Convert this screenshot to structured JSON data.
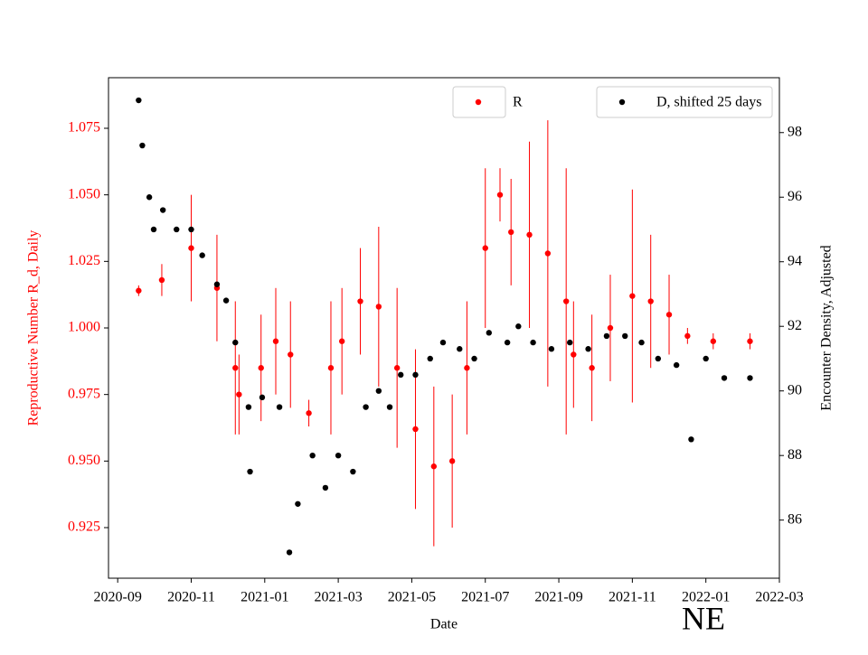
{
  "chart_data": {
    "type": "scatter",
    "xlabel": "Date",
    "ylabel": "Reproductive Number R_d, Daily",
    "y2label": "Encounter Density, Adjusted",
    "annotation": "NE",
    "xlim": [
      -0.25,
      18
    ],
    "xticks": [
      {
        "value": 0,
        "label": "2020-09"
      },
      {
        "value": 2,
        "label": "2020-11"
      },
      {
        "value": 4,
        "label": "2021-01"
      },
      {
        "value": 6,
        "label": "2021-03"
      },
      {
        "value": 8,
        "label": "2021-05"
      },
      {
        "value": 10,
        "label": "2021-07"
      },
      {
        "value": 12,
        "label": "2021-09"
      },
      {
        "value": 14,
        "label": "2021-11"
      },
      {
        "value": 16,
        "label": "2022-01"
      },
      {
        "value": 18,
        "label": "2022-03"
      }
    ],
    "ylim": [
      0.906,
      1.094
    ],
    "yticks": [
      0.925,
      {
        "value": 0.95,
        "label": "0.950"
      },
      0.975,
      {
        "value": 1,
        "label": "1.000"
      },
      1.025,
      {
        "value": 1.05,
        "label": "1.050"
      },
      1.075
    ],
    "y2lim": [
      84.2,
      99.7
    ],
    "y2ticks": [
      86,
      88,
      90,
      92,
      94,
      96,
      98
    ],
    "ycolor": "#ff0000",
    "series": [
      {
        "name": "R",
        "color": "#ff0000",
        "axis": "y",
        "legend": "upper center",
        "x": [
          0.57,
          1.2,
          2.0,
          2.7,
          3.2,
          3.3,
          3.9,
          4.3,
          4.7,
          5.2,
          5.8,
          6.1,
          6.6,
          7.1,
          7.6,
          8.1,
          8.6,
          9.1,
          9.5,
          10.0,
          10.4,
          10.7,
          11.2,
          11.7,
          12.2,
          12.4,
          12.9,
          13.4,
          14.0,
          14.5,
          15.0,
          15.5,
          16.2,
          17.2
        ],
        "values": [
          1.014,
          1.018,
          1.03,
          1.015,
          0.985,
          0.975,
          0.985,
          0.995,
          0.99,
          0.968,
          0.985,
          0.995,
          1.01,
          1.008,
          0.985,
          0.962,
          0.948,
          0.95,
          0.985,
          1.03,
          1.05,
          1.036,
          1.035,
          1.028,
          1.01,
          0.99,
          0.985,
          1.0,
          1.012,
          1.01,
          1.005,
          0.997,
          0.995,
          0.995
        ],
        "errors": [
          0.002,
          0.006,
          0.02,
          0.02,
          0.025,
          0.015,
          0.02,
          0.02,
          0.02,
          0.005,
          0.025,
          0.02,
          0.02,
          0.03,
          0.03,
          0.03,
          0.03,
          0.025,
          0.025,
          0.03,
          0.01,
          0.02,
          0.035,
          0.05,
          0.05,
          0.02,
          0.02,
          0.02,
          0.04,
          0.025,
          0.015,
          0.003,
          0.003,
          0.003
        ]
      },
      {
        "name": "D, shifted 25 days",
        "color": "#000000",
        "axis": "y2",
        "legend": "upper right",
        "x": [
          0.57,
          0.67,
          0.86,
          0.98,
          1.23,
          1.6,
          2.0,
          2.3,
          2.7,
          2.95,
          3.2,
          3.56,
          3.6,
          3.93,
          4.4,
          4.67,
          4.9,
          5.3,
          5.65,
          6.0,
          6.4,
          6.75,
          7.1,
          7.4,
          7.7,
          8.1,
          8.5,
          8.85,
          9.3,
          9.7,
          10.1,
          10.6,
          10.9,
          11.3,
          11.8,
          12.3,
          12.8,
          13.3,
          13.8,
          14.25,
          14.7,
          15.2,
          15.6,
          16.0,
          16.5,
          17.2
        ],
        "values": [
          99.0,
          97.6,
          96.0,
          95.0,
          95.6,
          95.0,
          95.0,
          94.2,
          93.3,
          92.8,
          91.5,
          89.5,
          87.5,
          89.8,
          89.5,
          85.0,
          86.5,
          88.0,
          87.0,
          88.0,
          87.5,
          89.5,
          90.0,
          89.5,
          90.5,
          90.5,
          91.0,
          91.5,
          91.3,
          91.0,
          91.8,
          91.5,
          92.0,
          91.5,
          91.3,
          91.5,
          91.3,
          91.7,
          91.7,
          91.5,
          91.0,
          90.8,
          88.5,
          91.0,
          90.4,
          90.4
        ]
      }
    ]
  }
}
